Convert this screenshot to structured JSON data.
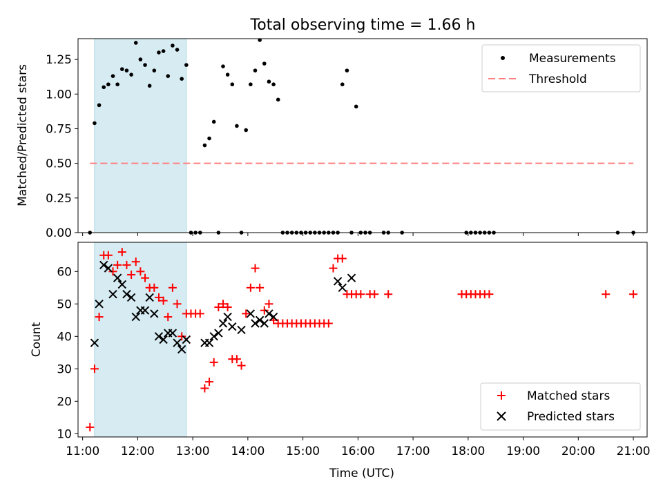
{
  "title": "Total observing time = 1.66 h",
  "chart_data": [
    {
      "type": "scatter",
      "panel": "top",
      "ylabel": "Matched/Predicted stars",
      "xlabel": "",
      "xlim": [
        "10:55",
        "21:15"
      ],
      "ylim": [
        0,
        1.4
      ],
      "yticks": [
        0.0,
        0.25,
        0.5,
        0.75,
        1.0,
        1.25
      ],
      "ytick_labels": [
        "0.00",
        "0.25",
        "0.50",
        "0.75",
        "1.00",
        "1.25"
      ],
      "grid": false,
      "shaded_interval": {
        "start": "11:13",
        "end": "12:53",
        "color": "#add8e6"
      },
      "legend_position": "upper right",
      "series": [
        {
          "name": "Measurements",
          "marker": "dot",
          "color": "#000000",
          "points": [
            [
              "11:08",
              0.0
            ],
            [
              "11:13",
              0.79
            ],
            [
              "11:18",
              0.92
            ],
            [
              "11:23",
              1.05
            ],
            [
              "11:28",
              1.07
            ],
            [
              "11:33",
              1.13
            ],
            [
              "11:38",
              1.07
            ],
            [
              "11:43",
              1.18
            ],
            [
              "11:48",
              1.17
            ],
            [
              "11:53",
              1.14
            ],
            [
              "11:58",
              1.37
            ],
            [
              "12:03",
              1.25
            ],
            [
              "12:08",
              1.21
            ],
            [
              "12:13",
              1.06
            ],
            [
              "12:18",
              1.17
            ],
            [
              "12:23",
              1.3
            ],
            [
              "12:28",
              1.31
            ],
            [
              "12:33",
              1.13
            ],
            [
              "12:38",
              1.35
            ],
            [
              "12:43",
              1.32
            ],
            [
              "12:48",
              1.11
            ],
            [
              "12:53",
              1.21
            ],
            [
              "12:58",
              0.0
            ],
            [
              "13:03",
              0.0
            ],
            [
              "13:08",
              0.0
            ],
            [
              "13:13",
              0.63
            ],
            [
              "13:18",
              0.68
            ],
            [
              "13:23",
              0.8
            ],
            [
              "13:28",
              0.0
            ],
            [
              "13:33",
              1.2
            ],
            [
              "13:38",
              1.14
            ],
            [
              "13:43",
              1.07
            ],
            [
              "13:48",
              0.77
            ],
            [
              "13:53",
              0.0
            ],
            [
              "13:58",
              0.74
            ],
            [
              "14:03",
              1.07
            ],
            [
              "14:08",
              1.17
            ],
            [
              "14:13",
              1.39
            ],
            [
              "14:18",
              1.22
            ],
            [
              "14:23",
              1.09
            ],
            [
              "14:28",
              1.07
            ],
            [
              "14:33",
              0.96
            ],
            [
              "14:38",
              0.0
            ],
            [
              "14:43",
              0.0
            ],
            [
              "14:48",
              0.0
            ],
            [
              "14:53",
              0.0
            ],
            [
              "14:58",
              0.0
            ],
            [
              "15:03",
              0.0
            ],
            [
              "15:08",
              0.0
            ],
            [
              "15:13",
              0.0
            ],
            [
              "15:18",
              0.0
            ],
            [
              "15:23",
              0.0
            ],
            [
              "15:28",
              0.0
            ],
            [
              "15:33",
              0.0
            ],
            [
              "15:38",
              0.0
            ],
            [
              "15:43",
              1.07
            ],
            [
              "15:48",
              1.17
            ],
            [
              "15:53",
              0.0
            ],
            [
              "15:58",
              0.91
            ],
            [
              "16:03",
              0.0
            ],
            [
              "16:08",
              0.0
            ],
            [
              "16:13",
              0.0
            ],
            [
              "16:28",
              0.0
            ],
            [
              "16:33",
              0.0
            ],
            [
              "16:48",
              0.0
            ],
            [
              "17:58",
              0.0
            ],
            [
              "18:03",
              0.0
            ],
            [
              "18:08",
              0.0
            ],
            [
              "18:13",
              0.0
            ],
            [
              "18:18",
              0.0
            ],
            [
              "18:23",
              0.0
            ],
            [
              "18:28",
              0.0
            ],
            [
              "20:43",
              0.0
            ],
            [
              "21:00",
              0.0
            ]
          ]
        },
        {
          "name": "Threshold",
          "style": "dashed-line",
          "color": "#ff7f7f",
          "points": [
            [
              "11:08",
              0.5
            ],
            [
              "21:00",
              0.5
            ]
          ]
        }
      ]
    },
    {
      "type": "scatter",
      "panel": "bottom",
      "ylabel": "Count",
      "xlabel": "Time (UTC)",
      "xlim": [
        "10:55",
        "21:15"
      ],
      "ylim": [
        9,
        69
      ],
      "yticks": [
        10,
        20,
        30,
        40,
        50,
        60
      ],
      "ytick_labels": [
        "10",
        "20",
        "30",
        "40",
        "50",
        "60"
      ],
      "xticks": [
        "11:00",
        "12:00",
        "13:00",
        "14:00",
        "15:00",
        "16:00",
        "17:00",
        "18:00",
        "19:00",
        "20:00",
        "21:00"
      ],
      "xtick_labels": [
        "11:00",
        "12:00",
        "13:00",
        "14:00",
        "15:00",
        "16:00",
        "17:00",
        "18:00",
        "19:00",
        "20:00",
        "21:00"
      ],
      "grid": false,
      "shaded_interval": {
        "start": "11:13",
        "end": "12:53",
        "color": "#add8e6"
      },
      "legend_position": "lower right",
      "series": [
        {
          "name": "Matched stars",
          "marker": "plus",
          "color": "#ff0000",
          "points": [
            [
              "11:08",
              12
            ],
            [
              "11:13",
              30
            ],
            [
              "11:18",
              46
            ],
            [
              "11:23",
              65
            ],
            [
              "11:28",
              65
            ],
            [
              "11:33",
              60
            ],
            [
              "11:38",
              62
            ],
            [
              "11:43",
              66
            ],
            [
              "11:48",
              62
            ],
            [
              "11:53",
              59
            ],
            [
              "11:58",
              63
            ],
            [
              "12:03",
              60
            ],
            [
              "12:08",
              58
            ],
            [
              "12:13",
              55
            ],
            [
              "12:18",
              55
            ],
            [
              "12:23",
              52
            ],
            [
              "12:28",
              51
            ],
            [
              "12:33",
              46
            ],
            [
              "12:38",
              55
            ],
            [
              "12:43",
              50
            ],
            [
              "12:48",
              40
            ],
            [
              "12:53",
              47
            ],
            [
              "12:58",
              47
            ],
            [
              "13:03",
              47
            ],
            [
              "13:08",
              47
            ],
            [
              "13:13",
              24
            ],
            [
              "13:18",
              26
            ],
            [
              "13:23",
              32
            ],
            [
              "13:28",
              49
            ],
            [
              "13:33",
              50
            ],
            [
              "13:38",
              49
            ],
            [
              "13:43",
              33
            ],
            [
              "13:48",
              33
            ],
            [
              "13:53",
              31
            ],
            [
              "13:58",
              47
            ],
            [
              "14:03",
              55
            ],
            [
              "14:08",
              61
            ],
            [
              "14:13",
              55
            ],
            [
              "14:18",
              48
            ],
            [
              "14:23",
              50
            ],
            [
              "14:28",
              45
            ],
            [
              "14:33",
              44
            ],
            [
              "14:38",
              44
            ],
            [
              "14:43",
              44
            ],
            [
              "14:48",
              44
            ],
            [
              "14:53",
              44
            ],
            [
              "14:58",
              44
            ],
            [
              "15:03",
              44
            ],
            [
              "15:08",
              44
            ],
            [
              "15:13",
              44
            ],
            [
              "15:18",
              44
            ],
            [
              "15:23",
              44
            ],
            [
              "15:28",
              44
            ],
            [
              "15:33",
              61
            ],
            [
              "15:38",
              64
            ],
            [
              "15:43",
              64
            ],
            [
              "15:48",
              53
            ],
            [
              "15:53",
              53
            ],
            [
              "15:58",
              53
            ],
            [
              "16:03",
              53
            ],
            [
              "16:13",
              53
            ],
            [
              "16:18",
              53
            ],
            [
              "16:33",
              53
            ],
            [
              "17:53",
              53
            ],
            [
              "17:58",
              53
            ],
            [
              "18:03",
              53
            ],
            [
              "18:08",
              53
            ],
            [
              "18:13",
              53
            ],
            [
              "18:18",
              53
            ],
            [
              "18:23",
              53
            ],
            [
              "20:30",
              53
            ],
            [
              "21:00",
              53
            ]
          ]
        },
        {
          "name": "Predicted stars",
          "marker": "x",
          "color": "#000000",
          "points": [
            [
              "11:13",
              38
            ],
            [
              "11:18",
              50
            ],
            [
              "11:23",
              62
            ],
            [
              "11:28",
              61
            ],
            [
              "11:33",
              53
            ],
            [
              "11:38",
              58
            ],
            [
              "11:43",
              56
            ],
            [
              "11:48",
              53
            ],
            [
              "11:53",
              52
            ],
            [
              "11:58",
              46
            ],
            [
              "12:03",
              48
            ],
            [
              "12:08",
              48
            ],
            [
              "12:13",
              52
            ],
            [
              "12:18",
              47
            ],
            [
              "12:23",
              40
            ],
            [
              "12:28",
              39
            ],
            [
              "12:33",
              41
            ],
            [
              "12:38",
              41
            ],
            [
              "12:43",
              38
            ],
            [
              "12:48",
              36
            ],
            [
              "12:53",
              39
            ],
            [
              "13:13",
              38
            ],
            [
              "13:18",
              38
            ],
            [
              "13:23",
              40
            ],
            [
              "13:28",
              41
            ],
            [
              "13:33",
              44
            ],
            [
              "13:38",
              46
            ],
            [
              "13:43",
              43
            ],
            [
              "13:53",
              42
            ],
            [
              "14:03",
              47
            ],
            [
              "14:08",
              44
            ],
            [
              "14:13",
              45
            ],
            [
              "14:18",
              44
            ],
            [
              "14:23",
              47
            ],
            [
              "14:28",
              46
            ],
            [
              "15:38",
              57
            ],
            [
              "15:43",
              55
            ],
            [
              "15:53",
              58
            ]
          ]
        }
      ]
    }
  ]
}
